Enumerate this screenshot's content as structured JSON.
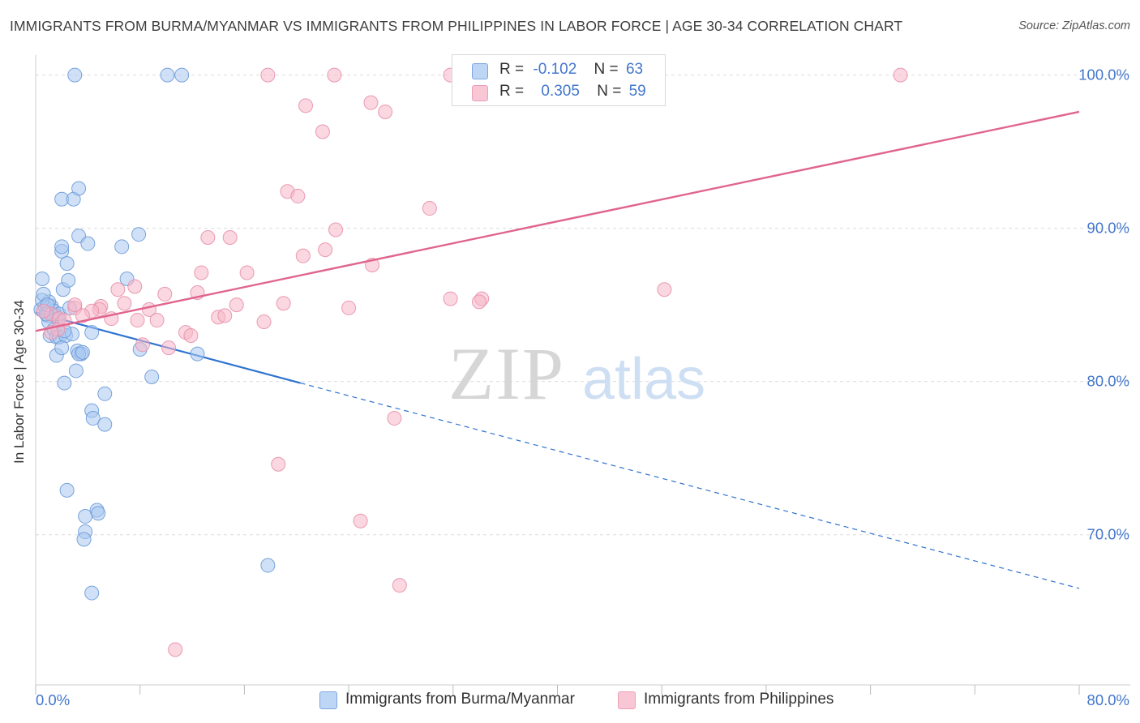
{
  "title": "IMMIGRANTS FROM BURMA/MYANMAR VS IMMIGRANTS FROM PHILIPPINES IN LABOR FORCE | AGE 30-34 CORRELATION CHART",
  "source": "Source: ZipAtlas.com",
  "watermark": {
    "zip": "ZIP",
    "atlas": "atlas"
  },
  "legend": {
    "rows": [
      {
        "r_label": "R =",
        "r_value": "-0.102",
        "n_label": "N =",
        "n_value": "63"
      },
      {
        "r_label": "R =",
        "r_value": "0.305",
        "n_label": "N =",
        "n_value": "59"
      }
    ]
  },
  "bottom_legend": [
    "Immigrants from Burma/Myanmar",
    "Immigrants from Philippines"
  ],
  "colors": {
    "blue_fill": "#a9c8f0",
    "blue_stroke": "#6c9ad8",
    "blue_line": "#2f73d0",
    "pink_fill": "#f6b6c8",
    "pink_stroke": "#e890aa",
    "pink_line": "#e0648e",
    "tick_text": "#4477cc",
    "grid": "#dcdcdc"
  },
  "chart_data": {
    "type": "scatter",
    "title": "IMMIGRANTS FROM BURMA/MYANMAR VS IMMIGRANTS FROM PHILIPPINES IN LABOR FORCE | AGE 30-34 CORRELATION CHART",
    "xlabel": "",
    "ylabel": "In Labor Force | Age 30-34",
    "xlim": [
      0,
      80
    ],
    "ylim": [
      60.2,
      101.3
    ],
    "x_tick_labels": [
      "0.0%",
      "80.0%"
    ],
    "y_ticks": [
      70,
      80,
      90,
      100
    ],
    "y_tick_labels": [
      "70.0%",
      "80.0%",
      "90.0%",
      "100.0%"
    ],
    "grid": "horizontal dashed",
    "legend_position": "top-center",
    "series": [
      {
        "name": "Immigrants from Burma/Myanmar",
        "color": "#a9c8f0",
        "trend": {
          "x": [
            0,
            20.3
          ],
          "y": [
            84.5,
            79.9
          ],
          "dashed_extension_to_x": 80,
          "dashed_end_y": 66.5
        },
        "points": [
          [
            0.4,
            84.7
          ],
          [
            0.7,
            84.9
          ],
          [
            0.9,
            84.3
          ],
          [
            1.2,
            84.9
          ],
          [
            1.4,
            84.6
          ],
          [
            1.5,
            84.3
          ],
          [
            1.7,
            84.1
          ],
          [
            1.0,
            85.2
          ],
          [
            0.5,
            85.3
          ],
          [
            0.5,
            86.7
          ],
          [
            0.6,
            85.7
          ],
          [
            2.1,
            86.0
          ],
          [
            2.5,
            86.6
          ],
          [
            1.0,
            83.9
          ],
          [
            1.1,
            83.0
          ],
          [
            1.4,
            83.4
          ],
          [
            1.6,
            82.9
          ],
          [
            1.8,
            82.9
          ],
          [
            2.3,
            83.0
          ],
          [
            2.8,
            83.1
          ],
          [
            4.3,
            83.2
          ],
          [
            1.6,
            81.7
          ],
          [
            3.2,
            82.0
          ],
          [
            3.5,
            81.8
          ],
          [
            2.0,
            82.2
          ],
          [
            2.2,
            83.3
          ],
          [
            3.3,
            81.8
          ],
          [
            3.6,
            81.9
          ],
          [
            8.0,
            82.1
          ],
          [
            12.4,
            81.8
          ],
          [
            3.1,
            80.7
          ],
          [
            2.2,
            79.9
          ],
          [
            8.9,
            80.3
          ],
          [
            5.3,
            79.2
          ],
          [
            4.3,
            78.1
          ],
          [
            4.4,
            77.6
          ],
          [
            5.3,
            77.2
          ],
          [
            2.4,
            72.9
          ],
          [
            3.8,
            71.2
          ],
          [
            4.7,
            71.6
          ],
          [
            4.8,
            71.4
          ],
          [
            3.8,
            70.2
          ],
          [
            3.7,
            69.7
          ],
          [
            17.8,
            68.0
          ],
          [
            4.3,
            66.2
          ],
          [
            2.0,
            91.9
          ],
          [
            2.9,
            91.9
          ],
          [
            3.3,
            92.6
          ],
          [
            2.0,
            88.5
          ],
          [
            2.0,
            88.8
          ],
          [
            2.4,
            87.7
          ],
          [
            3.3,
            89.5
          ],
          [
            4.0,
            89.0
          ],
          [
            6.6,
            88.8
          ],
          [
            7.9,
            89.6
          ],
          [
            7.0,
            86.7
          ],
          [
            1.8,
            84.4
          ],
          [
            2.6,
            84.8
          ],
          [
            0.8,
            84.4
          ],
          [
            3.0,
            100.0
          ],
          [
            10.1,
            100.0
          ],
          [
            11.2,
            100.0
          ],
          [
            0.9,
            85.0
          ]
        ]
      },
      {
        "name": "Immigrants from Philippines",
        "color": "#f6b6c8",
        "trend": {
          "x": [
            0,
            80
          ],
          "y": [
            83.3,
            97.6
          ]
        },
        "points": [
          [
            17.8,
            100.0
          ],
          [
            22.9,
            100.0
          ],
          [
            31.8,
            100.0
          ],
          [
            66.3,
            100.0
          ],
          [
            20.7,
            98.0
          ],
          [
            25.7,
            98.2
          ],
          [
            26.8,
            97.6
          ],
          [
            22.0,
            96.3
          ],
          [
            19.3,
            92.4
          ],
          [
            20.1,
            92.1
          ],
          [
            30.2,
            91.3
          ],
          [
            23.0,
            89.9
          ],
          [
            13.2,
            89.4
          ],
          [
            14.9,
            89.4
          ],
          [
            22.2,
            88.6
          ],
          [
            20.5,
            88.2
          ],
          [
            25.8,
            87.6
          ],
          [
            12.7,
            87.1
          ],
          [
            16.2,
            87.1
          ],
          [
            7.6,
            86.2
          ],
          [
            6.3,
            86.0
          ],
          [
            9.9,
            85.7
          ],
          [
            12.4,
            85.8
          ],
          [
            48.2,
            86.0
          ],
          [
            31.8,
            85.4
          ],
          [
            34.2,
            85.4
          ],
          [
            34.0,
            85.2
          ],
          [
            19.0,
            85.1
          ],
          [
            15.4,
            85.0
          ],
          [
            6.8,
            85.1
          ],
          [
            5.0,
            84.9
          ],
          [
            4.9,
            84.7
          ],
          [
            4.3,
            84.6
          ],
          [
            3.0,
            84.8
          ],
          [
            3.6,
            84.3
          ],
          [
            8.7,
            84.7
          ],
          [
            24.0,
            84.8
          ],
          [
            1.2,
            84.4
          ],
          [
            1.8,
            84.1
          ],
          [
            5.8,
            84.1
          ],
          [
            7.8,
            84.0
          ],
          [
            9.3,
            84.0
          ],
          [
            14.0,
            84.2
          ],
          [
            14.5,
            84.3
          ],
          [
            17.5,
            83.9
          ],
          [
            0.6,
            84.6
          ],
          [
            3.0,
            85.0
          ],
          [
            11.5,
            83.2
          ],
          [
            11.9,
            83.0
          ],
          [
            8.2,
            82.4
          ],
          [
            10.2,
            82.2
          ],
          [
            1.7,
            83.4
          ],
          [
            1.2,
            83.2
          ],
          [
            27.5,
            77.6
          ],
          [
            18.6,
            74.6
          ],
          [
            24.9,
            70.9
          ],
          [
            27.9,
            66.7
          ],
          [
            10.7,
            62.5
          ],
          [
            2.2,
            84.0
          ]
        ]
      }
    ]
  }
}
